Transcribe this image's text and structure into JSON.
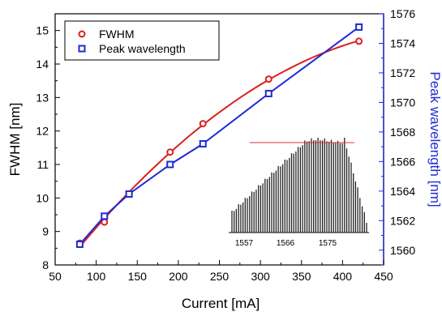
{
  "chart_data": {
    "type": "line",
    "xlabel": "Current [mA]",
    "ylabel_left": "FWHM [nm]",
    "ylabel_right": "Peak wavelength [nm]",
    "xlim": [
      50,
      450
    ],
    "ylim_left": [
      8,
      15.5
    ],
    "ylim_right": [
      1559,
      1576
    ],
    "x_ticks": [
      "50",
      "100",
      "150",
      "200",
      "250",
      "300",
      "350",
      "400",
      "450"
    ],
    "y_left_ticks": [
      "8",
      "9",
      "10",
      "11",
      "12",
      "13",
      "14",
      "15"
    ],
    "y_right_ticks": [
      "1560",
      "1562",
      "1564",
      "1566",
      "1568",
      "1570",
      "1572",
      "1574",
      "1576"
    ],
    "legend_position": "top-left",
    "series": [
      {
        "name": "FWHM",
        "axis": "left",
        "color": "#dd1f1f",
        "marker": "circle",
        "x": [
          80,
          110,
          140,
          190,
          230,
          310,
          420
        ],
        "y": [
          8.65,
          9.28,
          10.12,
          11.37,
          12.22,
          13.55,
          14.68
        ]
      },
      {
        "name": "Peak wavelength",
        "axis": "right",
        "color": "#1f2ad6",
        "marker": "square",
        "x": [
          80,
          110,
          140,
          190,
          230,
          310,
          420
        ],
        "y": [
          1560.4,
          1562.3,
          1563.8,
          1565.8,
          1567.2,
          1570.6,
          1575.1
        ]
      }
    ],
    "inset": {
      "type": "spectrum",
      "x_ticks": [
        "1557",
        "1566",
        "1575"
      ],
      "reference_line_color": "#e03030"
    }
  }
}
